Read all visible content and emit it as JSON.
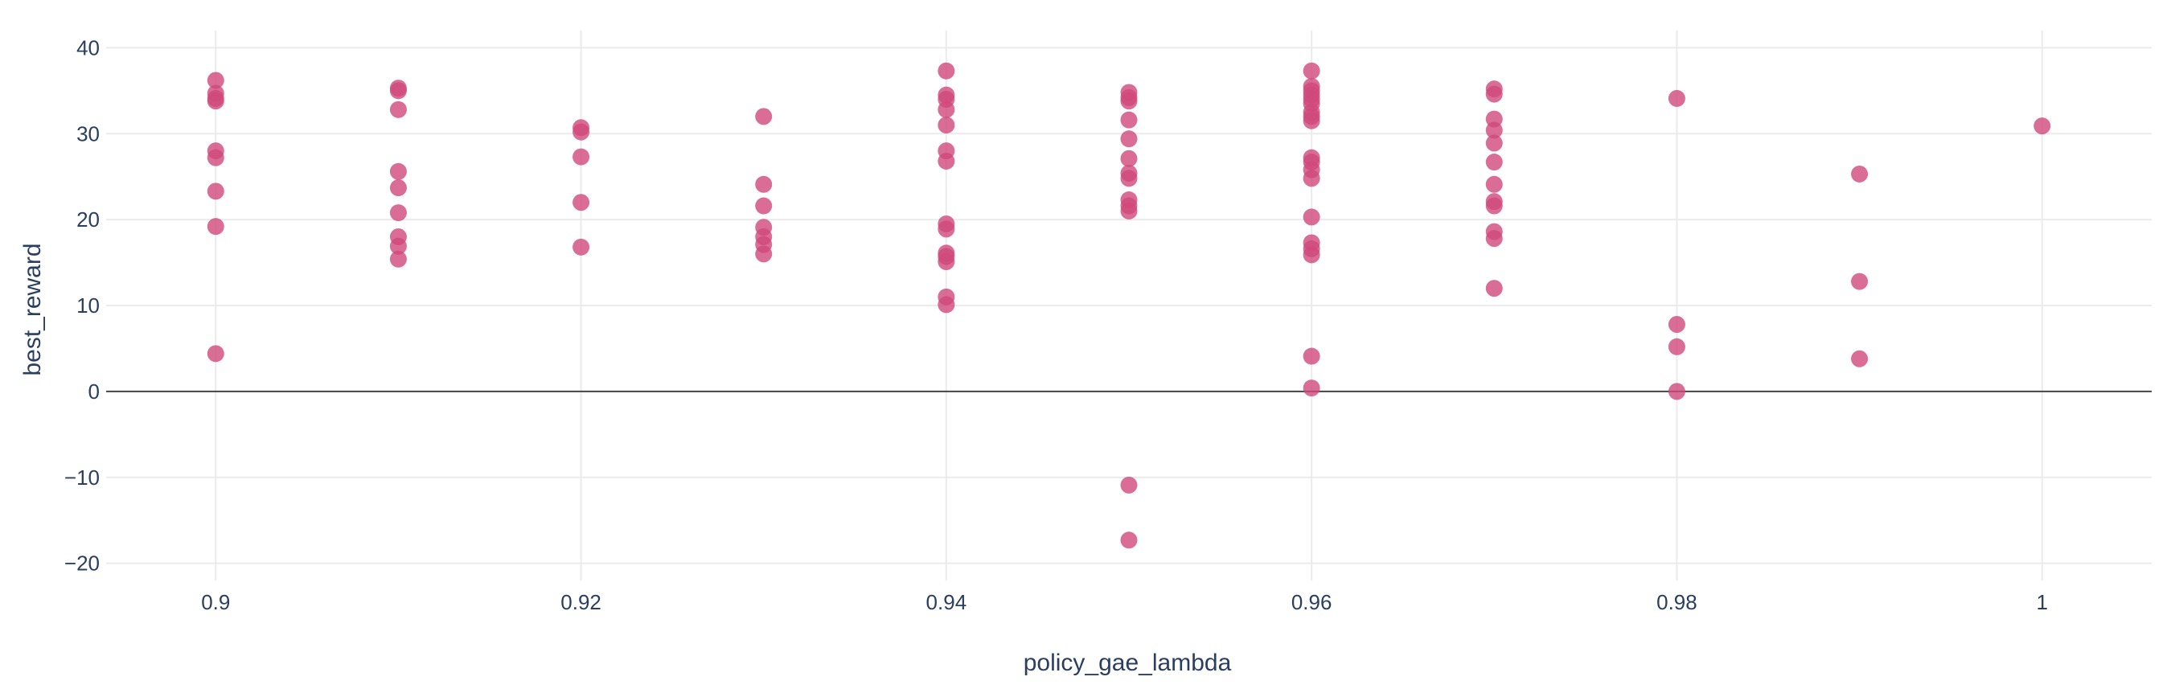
{
  "chart_data": {
    "type": "scatter",
    "title": "",
    "xlabel": "policy_gae_lambda",
    "ylabel": "best_reward",
    "xlim": [
      0.894,
      1.006
    ],
    "ylim": [
      -22,
      42
    ],
    "grid": true,
    "zero_line": true,
    "marker_color": "#d0487a",
    "x_ticks": [
      0.9,
      0.92,
      0.94,
      0.96,
      0.98,
      1
    ],
    "x_tick_labels": [
      "0.9",
      "0.92",
      "0.94",
      "0.96",
      "0.98",
      "1"
    ],
    "y_ticks": [
      -20,
      -10,
      0,
      10,
      20,
      30,
      40
    ],
    "y_tick_labels": [
      "−20",
      "−10",
      "0",
      "10",
      "20",
      "30",
      "40"
    ],
    "points": [
      {
        "x": 0.9,
        "y": 36.2
      },
      {
        "x": 0.9,
        "y": 34.7
      },
      {
        "x": 0.9,
        "y": 34.1
      },
      {
        "x": 0.9,
        "y": 33.8
      },
      {
        "x": 0.9,
        "y": 28.0
      },
      {
        "x": 0.9,
        "y": 27.2
      },
      {
        "x": 0.9,
        "y": 23.3
      },
      {
        "x": 0.9,
        "y": 19.2
      },
      {
        "x": 0.9,
        "y": 4.4
      },
      {
        "x": 0.91,
        "y": 35.3
      },
      {
        "x": 0.91,
        "y": 35.0
      },
      {
        "x": 0.91,
        "y": 32.8
      },
      {
        "x": 0.91,
        "y": 25.6
      },
      {
        "x": 0.91,
        "y": 23.7
      },
      {
        "x": 0.91,
        "y": 20.8
      },
      {
        "x": 0.91,
        "y": 18.0
      },
      {
        "x": 0.91,
        "y": 16.9
      },
      {
        "x": 0.91,
        "y": 15.4
      },
      {
        "x": 0.92,
        "y": 30.7
      },
      {
        "x": 0.92,
        "y": 30.2
      },
      {
        "x": 0.92,
        "y": 27.3
      },
      {
        "x": 0.92,
        "y": 22.0
      },
      {
        "x": 0.92,
        "y": 16.8
      },
      {
        "x": 0.93,
        "y": 32.0
      },
      {
        "x": 0.93,
        "y": 24.1
      },
      {
        "x": 0.93,
        "y": 21.6
      },
      {
        "x": 0.93,
        "y": 19.1
      },
      {
        "x": 0.93,
        "y": 18.0
      },
      {
        "x": 0.93,
        "y": 17.1
      },
      {
        "x": 0.93,
        "y": 16.0
      },
      {
        "x": 0.94,
        "y": 37.3
      },
      {
        "x": 0.94,
        "y": 34.5
      },
      {
        "x": 0.94,
        "y": 34.0
      },
      {
        "x": 0.94,
        "y": 32.8
      },
      {
        "x": 0.94,
        "y": 31.0
      },
      {
        "x": 0.94,
        "y": 28.0
      },
      {
        "x": 0.94,
        "y": 26.8
      },
      {
        "x": 0.94,
        "y": 19.5
      },
      {
        "x": 0.94,
        "y": 18.9
      },
      {
        "x": 0.94,
        "y": 16.1
      },
      {
        "x": 0.94,
        "y": 15.7
      },
      {
        "x": 0.94,
        "y": 15.1
      },
      {
        "x": 0.94,
        "y": 11.0
      },
      {
        "x": 0.94,
        "y": 10.1
      },
      {
        "x": 0.95,
        "y": 34.8
      },
      {
        "x": 0.95,
        "y": 34.2
      },
      {
        "x": 0.95,
        "y": 33.8
      },
      {
        "x": 0.95,
        "y": 31.6
      },
      {
        "x": 0.95,
        "y": 29.4
      },
      {
        "x": 0.95,
        "y": 27.1
      },
      {
        "x": 0.95,
        "y": 25.4
      },
      {
        "x": 0.95,
        "y": 24.8
      },
      {
        "x": 0.95,
        "y": 22.3
      },
      {
        "x": 0.95,
        "y": 21.6
      },
      {
        "x": 0.95,
        "y": 21.0
      },
      {
        "x": 0.95,
        "y": -10.9
      },
      {
        "x": 0.95,
        "y": -17.3
      },
      {
        "x": 0.96,
        "y": 37.3
      },
      {
        "x": 0.96,
        "y": 35.5
      },
      {
        "x": 0.96,
        "y": 35.0
      },
      {
        "x": 0.96,
        "y": 34.5
      },
      {
        "x": 0.96,
        "y": 34.0
      },
      {
        "x": 0.96,
        "y": 33.5
      },
      {
        "x": 0.96,
        "y": 32.5
      },
      {
        "x": 0.96,
        "y": 32.0
      },
      {
        "x": 0.96,
        "y": 31.5
      },
      {
        "x": 0.96,
        "y": 27.2
      },
      {
        "x": 0.96,
        "y": 26.7
      },
      {
        "x": 0.96,
        "y": 25.8
      },
      {
        "x": 0.96,
        "y": 24.8
      },
      {
        "x": 0.96,
        "y": 20.3
      },
      {
        "x": 0.96,
        "y": 17.3
      },
      {
        "x": 0.96,
        "y": 16.6
      },
      {
        "x": 0.96,
        "y": 15.9
      },
      {
        "x": 0.96,
        "y": 4.1
      },
      {
        "x": 0.96,
        "y": 0.4
      },
      {
        "x": 0.97,
        "y": 35.2
      },
      {
        "x": 0.97,
        "y": 34.6
      },
      {
        "x": 0.97,
        "y": 31.7
      },
      {
        "x": 0.97,
        "y": 30.4
      },
      {
        "x": 0.97,
        "y": 28.9
      },
      {
        "x": 0.97,
        "y": 26.7
      },
      {
        "x": 0.97,
        "y": 24.1
      },
      {
        "x": 0.97,
        "y": 22.1
      },
      {
        "x": 0.97,
        "y": 21.6
      },
      {
        "x": 0.97,
        "y": 18.6
      },
      {
        "x": 0.97,
        "y": 17.8
      },
      {
        "x": 0.97,
        "y": 12.0
      },
      {
        "x": 0.98,
        "y": 34.1
      },
      {
        "x": 0.98,
        "y": 7.8
      },
      {
        "x": 0.98,
        "y": 5.2
      },
      {
        "x": 0.98,
        "y": 0.0
      },
      {
        "x": 0.99,
        "y": 25.3
      },
      {
        "x": 0.99,
        "y": 12.8
      },
      {
        "x": 0.99,
        "y": 3.8
      },
      {
        "x": 1.0,
        "y": 30.9
      }
    ]
  }
}
